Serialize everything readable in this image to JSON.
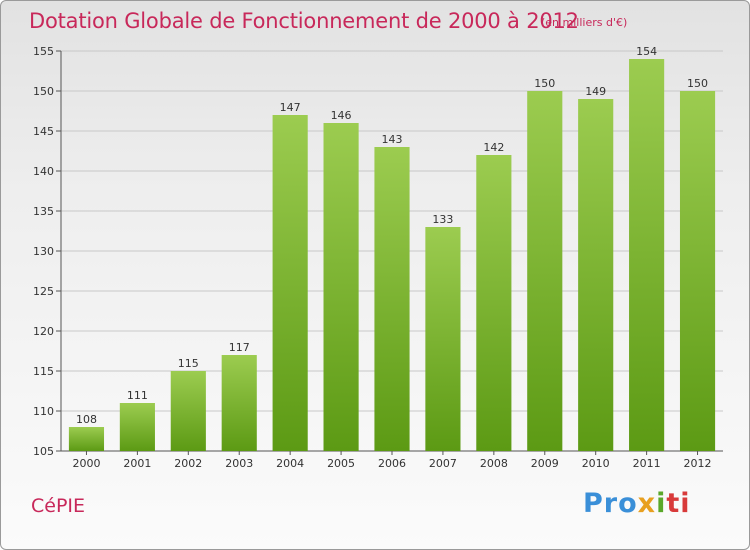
{
  "title": "Dotation Globale de Fonctionnement de 2000 à 2012",
  "unit_note": "(en milliers d'€)",
  "commune": "CéPIE",
  "logo": {
    "text": "Proxiti",
    "p1": "Pro",
    "p2": "x",
    "p3": "i",
    "p4": "ti"
  },
  "colors": {
    "bar_light": "#9ccc50",
    "bar_dark": "#5c9a14",
    "title": "#c8285a",
    "grid": "#c8c8c8",
    "axis": "#555555"
  },
  "chart_data": {
    "type": "bar",
    "title": "Dotation Globale de Fonctionnement de 2000 à 2012",
    "subtitle": "(en milliers d'€)",
    "categories": [
      "2000",
      "2001",
      "2002",
      "2003",
      "2004",
      "2005",
      "2006",
      "2007",
      "2008",
      "2009",
      "2010",
      "2011",
      "2012"
    ],
    "values": [
      108,
      111,
      115,
      117,
      147,
      146,
      143,
      133,
      142,
      150,
      149,
      154,
      150
    ],
    "ylim": [
      105,
      155
    ],
    "yticks": [
      105,
      110,
      115,
      120,
      125,
      130,
      135,
      140,
      145,
      150,
      155
    ],
    "grid": true,
    "xlabel": "",
    "ylabel": ""
  }
}
